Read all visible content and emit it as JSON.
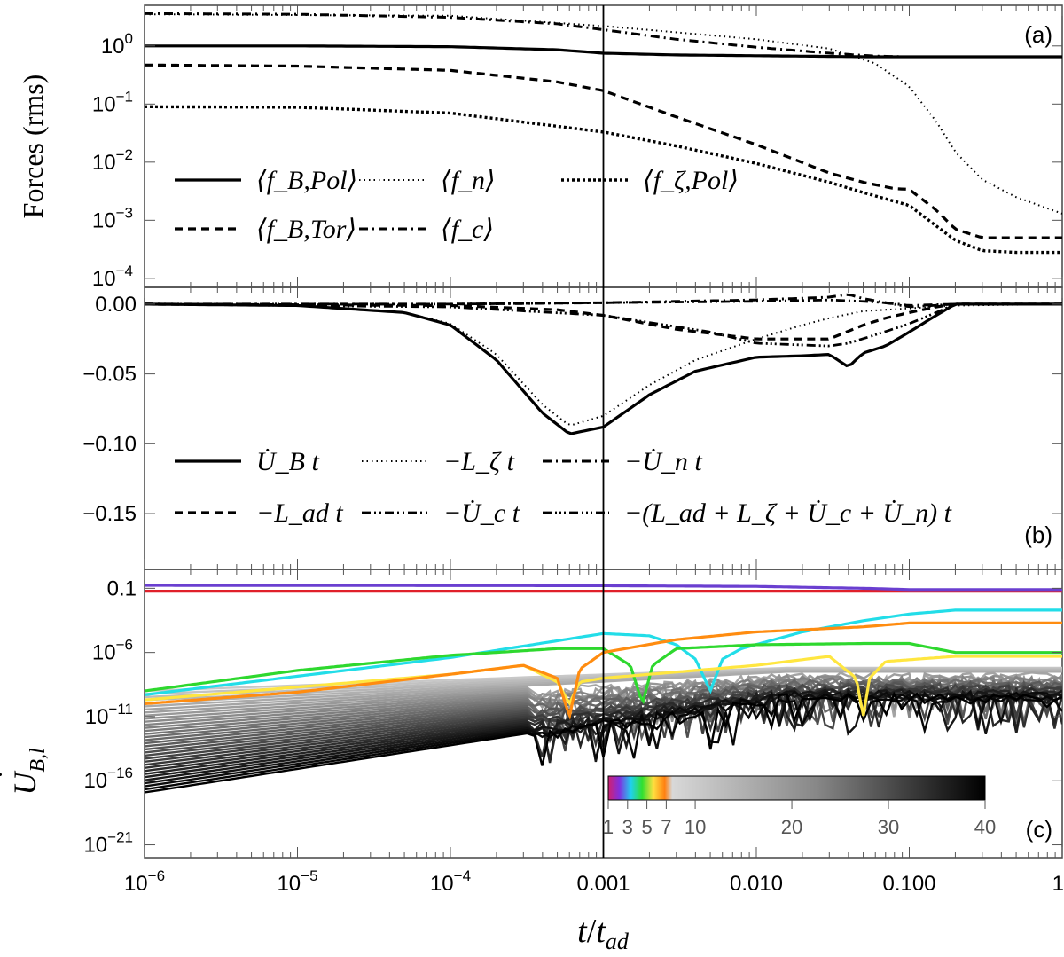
{
  "chart_data": [
    {
      "panel": "a",
      "panel_label": "(a)",
      "type": "line",
      "title": "",
      "xlabel": "t/t_ad",
      "ylabel": "Forces (rms)",
      "xscale": "log",
      "yscale": "log",
      "xlim": [
        1e-06,
        1
      ],
      "ylim": [
        7e-05,
        5
      ],
      "yticks": [
        {
          "v": 1,
          "base": "10",
          "exp": "0"
        },
        {
          "v": 0.1,
          "base": "10",
          "exp": "−1"
        },
        {
          "v": 0.01,
          "base": "10",
          "exp": "−2"
        },
        {
          "v": 0.001,
          "base": "10",
          "exp": "−3"
        },
        {
          "v": 0.0001,
          "base": "10",
          "exp": "−4"
        }
      ],
      "legend_position": "lower-left",
      "series": [
        {
          "name": "⟨f_B,Pol⟩",
          "style": "solid",
          "x": [
            1e-06,
            1e-05,
            0.0001,
            0.0005,
            0.001,
            0.003,
            0.01,
            0.03,
            0.06,
            0.1,
            0.2,
            0.5,
            1
          ],
          "y": [
            1.0,
            1.0,
            0.97,
            0.86,
            0.75,
            0.7,
            0.68,
            0.66,
            0.65,
            0.65,
            0.65,
            0.65,
            0.65
          ]
        },
        {
          "name": "⟨f_n⟩",
          "style": "dotted",
          "x": [
            1e-06,
            0.0001,
            0.001,
            0.01,
            0.03,
            0.06,
            0.1,
            0.15,
            0.2,
            0.3,
            0.5,
            1
          ],
          "y": [
            3.5,
            3.3,
            2.2,
            1.3,
            0.9,
            0.5,
            0.2,
            0.05,
            0.015,
            0.005,
            0.0025,
            0.0013
          ]
        },
        {
          "name": "⟨f_ζ,Pol⟩",
          "style": "densedotted",
          "x": [
            1e-06,
            1e-05,
            0.0001,
            0.001,
            0.003,
            0.01,
            0.03,
            0.05,
            0.1,
            0.15,
            0.2,
            0.3,
            0.5,
            1
          ],
          "y": [
            0.09,
            0.088,
            0.07,
            0.033,
            0.019,
            0.0095,
            0.0045,
            0.003,
            0.0018,
            0.0008,
            0.00045,
            0.0003,
            0.00028,
            0.00028
          ]
        },
        {
          "name": "⟨f_B,Tor⟩",
          "style": "dashed",
          "x": [
            1e-06,
            1e-05,
            0.0001,
            0.0005,
            0.001,
            0.003,
            0.01,
            0.03,
            0.05,
            0.08,
            0.1,
            0.15,
            0.2,
            0.3,
            0.5,
            1
          ],
          "y": [
            0.47,
            0.45,
            0.38,
            0.24,
            0.17,
            0.06,
            0.02,
            0.0065,
            0.0045,
            0.0035,
            0.0034,
            0.0015,
            0.0007,
            0.0005,
            0.0005,
            0.0005
          ]
        },
        {
          "name": "⟨f_c⟩",
          "style": "dashdot",
          "x": [
            1e-06,
            1e-05,
            0.0001,
            0.0005,
            0.001,
            0.003,
            0.01,
            0.03,
            0.06,
            0.1
          ],
          "y": [
            3.6,
            3.5,
            3.1,
            2.4,
            1.9,
            1.3,
            0.95,
            0.75,
            0.67,
            0.65
          ]
        }
      ]
    },
    {
      "panel": "b",
      "panel_label": "(b)",
      "type": "line",
      "title": "",
      "xlabel": "t/t_ad",
      "ylabel": "",
      "xscale": "log",
      "yscale": "linear",
      "xlim": [
        1e-06,
        1
      ],
      "ylim": [
        -0.19,
        0.012
      ],
      "yticks": [
        {
          "v": 0,
          "label": "0.00"
        },
        {
          "v": -0.05,
          "label": "−0.05"
        },
        {
          "v": -0.1,
          "label": "−0.10"
        },
        {
          "v": -0.15,
          "label": "−0.15"
        }
      ],
      "legend_position": "lower",
      "series": [
        {
          "name": "U̇_B t",
          "style": "solid",
          "x": [
            1e-06,
            1e-05,
            5e-05,
            0.0001,
            0.0002,
            0.0004,
            0.0006,
            0.001,
            0.002,
            0.004,
            0.01,
            0.02,
            0.03,
            0.04,
            0.05,
            0.07,
            0.1,
            0.15,
            0.2,
            1
          ],
          "y": [
            0,
            -0.001,
            -0.006,
            -0.015,
            -0.04,
            -0.078,
            -0.093,
            -0.088,
            -0.065,
            -0.048,
            -0.038,
            -0.037,
            -0.036,
            -0.045,
            -0.035,
            -0.03,
            -0.02,
            -0.008,
            0,
            0
          ]
        },
        {
          "name": "−L_ζ t",
          "style": "dotted",
          "x": [
            1e-06,
            1e-05,
            5e-05,
            0.0001,
            0.0002,
            0.0004,
            0.0006,
            0.001,
            0.002,
            0.004,
            0.01,
            0.02,
            0.03,
            0.05,
            0.1,
            0.2,
            1
          ],
          "y": [
            0,
            -0.001,
            -0.006,
            -0.014,
            -0.036,
            -0.072,
            -0.087,
            -0.08,
            -0.058,
            -0.04,
            -0.025,
            -0.015,
            -0.01,
            -0.005,
            -0.003,
            -0.001,
            0
          ]
        },
        {
          "name": "−U̇_n t",
          "style": "dashdot",
          "x": [
            1e-06,
            0.0001,
            0.001,
            0.01,
            0.03,
            0.04,
            0.05,
            0.07,
            0.1,
            0.2,
            1
          ],
          "y": [
            0,
            0,
            0.001,
            0.003,
            0.005,
            0.007,
            0.004,
            0.001,
            -0.001,
            0,
            0
          ]
        },
        {
          "name": "−L_ad t",
          "style": "dashed",
          "x": [
            1e-06,
            0.0001,
            0.0005,
            0.001,
            0.003,
            0.01,
            0.03,
            0.05,
            0.07,
            0.1,
            0.15,
            0.2,
            1
          ],
          "y": [
            0,
            -0.001,
            -0.004,
            -0.008,
            -0.018,
            -0.025,
            -0.025,
            -0.015,
            -0.01,
            -0.006,
            -0.002,
            0,
            0
          ]
        },
        {
          "name": "−U̇_c t",
          "style": "dashdotdot",
          "x": [
            1e-06,
            0.0001,
            0.001,
            0.01,
            0.03,
            0.05,
            0.07,
            0.1,
            0.2,
            1
          ],
          "y": [
            0,
            0,
            0.001,
            0.002,
            0.003,
            0.002,
            0.001,
            -0.002,
            0,
            0
          ]
        },
        {
          "name": "−(L_ad + L_ζ + U̇_c + U̇_n) t",
          "style": "dashdotdotdot",
          "x": [
            1e-06,
            0.0001,
            0.001,
            0.005,
            0.01,
            0.03,
            0.04,
            0.06,
            0.1,
            0.15,
            0.2,
            1
          ],
          "y": [
            0,
            -0.002,
            -0.008,
            -0.02,
            -0.028,
            -0.03,
            -0.028,
            -0.022,
            -0.014,
            -0.006,
            0,
            0
          ]
        }
      ]
    },
    {
      "panel": "c",
      "panel_label": "(c)",
      "type": "line",
      "title": "",
      "xlabel": "t/t_ad",
      "ylabel": "U_B,l",
      "xscale": "log",
      "yscale": "log",
      "xlim": [
        1e-06,
        1
      ],
      "ylim": [
        1e-22,
        3
      ],
      "xticks": [
        {
          "v": 1e-06,
          "base": "10",
          "exp": "−6"
        },
        {
          "v": 1e-05,
          "base": "10",
          "exp": "−5"
        },
        {
          "v": 0.0001,
          "base": "10",
          "exp": "−4"
        },
        {
          "v": 0.001,
          "label": "0.001"
        },
        {
          "v": 0.01,
          "label": "0.010"
        },
        {
          "v": 0.1,
          "label": "0.100"
        },
        {
          "v": 1,
          "label": "1"
        }
      ],
      "yticks": [
        {
          "v": 0.1,
          "label": "0.1"
        },
        {
          "v": 1e-06,
          "base": "10",
          "exp": "−6"
        },
        {
          "v": 1e-11,
          "base": "10",
          "exp": "−11"
        },
        {
          "v": 1e-16,
          "base": "10",
          "exp": "−16"
        },
        {
          "v": 1e-21,
          "base": "10",
          "exp": "−21"
        }
      ],
      "colorbar": {
        "label_values": [
          "1",
          "3",
          "5",
          "7",
          "10",
          "20",
          "30",
          "40"
        ],
        "l_min": 1,
        "l_max": 40
      },
      "series": [
        {
          "name": "l=1",
          "color": "#e0202a",
          "x": [
            1e-06,
            0.001,
            0.1,
            1
          ],
          "y": [
            0.06,
            0.06,
            0.06,
            0.06
          ]
        },
        {
          "name": "l=2",
          "color": "#6a3fd0",
          "x": [
            1e-06,
            0.001,
            0.01,
            0.05,
            0.1,
            1
          ],
          "y": [
            0.17,
            0.16,
            0.14,
            0.1,
            0.08,
            0.08
          ]
        },
        {
          "name": "l=3",
          "color": "#22dde8",
          "x": [
            1e-06,
            0.0001,
            0.001,
            0.002,
            0.003,
            0.004,
            0.005,
            0.006,
            0.008,
            0.02,
            0.05,
            0.1,
            0.2,
            1
          ],
          "y": [
            5e-10,
            4e-07,
            3e-05,
            2e-05,
            4e-06,
            3e-07,
            1e-09,
            3e-07,
            2e-06,
            4e-05,
            0.0003,
            0.001,
            0.002,
            0.002
          ]
        },
        {
          "name": "l=4",
          "color": "#2ed82e",
          "x": [
            1e-06,
            1e-05,
            0.0001,
            0.0005,
            0.001,
            0.0015,
            0.0018,
            0.0021,
            0.003,
            0.01,
            0.05,
            0.1,
            0.2,
            1
          ],
          "y": [
            1e-09,
            4e-08,
            6e-07,
            2e-06,
            2e-06,
            1e-07,
            1e-10,
            1e-07,
            2e-06,
            4e-06,
            5e-06,
            5e-06,
            1e-06,
            1e-06
          ]
        },
        {
          "name": "l=5",
          "color": "#ffe640",
          "x": [
            1e-06,
            0.0001,
            0.0003,
            0.0005,
            0.0006,
            0.0007,
            0.001,
            0.01,
            0.03,
            0.045,
            0.05,
            0.055,
            0.07,
            0.2,
            1
          ],
          "y": [
            2e-10,
            2e-08,
            1e-07,
            5e-09,
            1e-10,
            5e-09,
            1e-08,
            1e-07,
            5e-07,
            1e-08,
            1e-11,
            1e-08,
            2e-07,
            5e-07,
            5e-07
          ]
        },
        {
          "name": "l=6",
          "color": "#ff8c10",
          "x": [
            1e-06,
            1e-05,
            0.0001,
            0.0003,
            0.0005,
            0.0006,
            0.0007,
            0.001,
            0.003,
            0.01,
            0.05,
            0.1,
            1
          ],
          "y": [
            1e-10,
            8e-10,
            2e-08,
            1e-07,
            1e-08,
            1e-11,
            5e-08,
            1e-06,
            1e-05,
            4e-05,
            0.0001,
            0.0002,
            0.0002
          ]
        }
      ]
    }
  ],
  "shared": {
    "reference_line_x": 0.001
  }
}
